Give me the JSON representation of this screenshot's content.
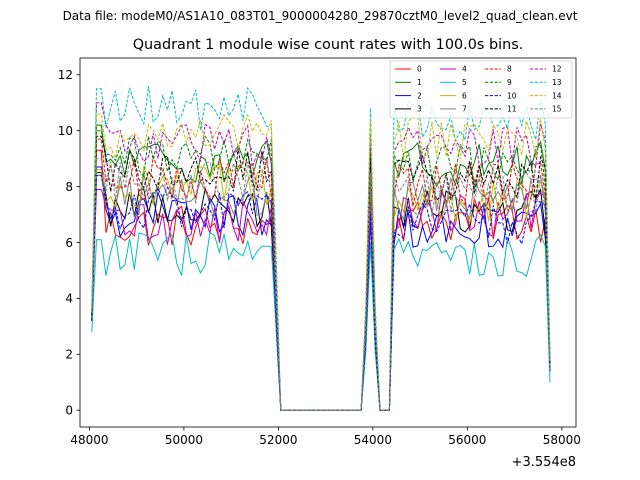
{
  "chart_data": {
    "type": "line",
    "suptitle": "Data file: modeM0/AS1A10_083T01_9000004280_29870cztM0_level2_quad_clean.evt",
    "title": "Quadrant 1 module wise count rates with 100.0s bins.",
    "xlabel": "",
    "ylabel": "",
    "x_offset_label": "+3.554e8",
    "xlim": [
      47800,
      58300
    ],
    "ylim": [
      -0.6,
      12.6
    ],
    "x_ticks": [
      48000,
      50000,
      52000,
      54000,
      56000,
      58000
    ],
    "x_tick_labels": [
      "48000",
      "50000",
      "52000",
      "54000",
      "56000",
      "58000"
    ],
    "y_ticks": [
      0,
      2,
      4,
      6,
      8,
      10,
      12
    ],
    "y_tick_labels": [
      "0",
      "2",
      "4",
      "6",
      "8",
      "10",
      "12"
    ],
    "bin_start": 48050,
    "bin_width": 100,
    "num_bins": 98,
    "segments": [
      {
        "type": "rise",
        "from": 48050,
        "to": 48250
      },
      {
        "type": "on",
        "from": 48250,
        "to": 51850
      },
      {
        "type": "fall",
        "from": 51850,
        "to": 52050
      },
      {
        "type": "off",
        "from": 52050,
        "to": 53750
      },
      {
        "type": "spike",
        "from": 53750,
        "to": 54150,
        "peak": 53950
      },
      {
        "type": "off",
        "from": 54150,
        "to": 54350
      },
      {
        "type": "rise",
        "from": 54350,
        "to": 54550
      },
      {
        "type": "on",
        "from": 54550,
        "to": 57750
      },
      {
        "type": "fall",
        "from": 57750,
        "to": 57850
      }
    ],
    "legend_position": "upper-right",
    "series": [
      {
        "name": "0",
        "color": "#ff0000",
        "style": "solid",
        "level_first": 6.6,
        "level_second": 6.8,
        "peak": 9.3,
        "spike": 7.1,
        "end": 1.6
      },
      {
        "name": "1",
        "color": "#008000",
        "style": "solid",
        "level_first": 8.9,
        "level_second": 8.8,
        "peak": 10.2,
        "spike": 9.2,
        "end": 1.6
      },
      {
        "name": "2",
        "color": "#0000ff",
        "style": "solid",
        "level_first": 7.0,
        "level_second": 6.6,
        "peak": 8.7,
        "spike": 6.9,
        "end": 1.4
      },
      {
        "name": "3",
        "color": "#000000",
        "style": "solid",
        "level_first": 7.3,
        "level_second": 7.1,
        "peak": 8.5,
        "spike": 7.6,
        "end": 1.5
      },
      {
        "name": "4",
        "color": "#bf00bf",
        "style": "solid",
        "level_first": 6.7,
        "level_second": 7.0,
        "peak": 7.9,
        "spike": 7.3,
        "end": 1.4
      },
      {
        "name": "5",
        "color": "#00bfbf",
        "style": "solid",
        "level_first": 5.6,
        "level_second": 5.5,
        "peak": 6.1,
        "spike": 6.0,
        "end": 1.0
      },
      {
        "name": "6",
        "color": "#bfbf00",
        "style": "solid",
        "level_first": 8.0,
        "level_second": 7.4,
        "peak": 8.6,
        "spike": 8.4,
        "end": 1.5
      },
      {
        "name": "7",
        "color": "#808080",
        "style": "solid",
        "level_first": 7.7,
        "level_second": 7.6,
        "peak": 8.4,
        "spike": 8.2,
        "end": 1.5
      },
      {
        "name": "8",
        "color": "#ff0000",
        "style": "dashed",
        "level_first": 8.3,
        "level_second": 8.1,
        "peak": 9.7,
        "spike": 8.9,
        "end": 1.6
      },
      {
        "name": "9",
        "color": "#008000",
        "style": "dashed",
        "level_first": 9.1,
        "level_second": 8.7,
        "peak": 10.0,
        "spike": 9.4,
        "end": 1.7
      },
      {
        "name": "10",
        "color": "#0000ff",
        "style": "dashed",
        "level_first": 7.2,
        "level_second": 6.7,
        "peak": 8.4,
        "spike": 7.0,
        "end": 1.4
      },
      {
        "name": "11",
        "color": "#000000",
        "style": "dashed",
        "level_first": 8.6,
        "level_second": 8.3,
        "peak": 9.8,
        "spike": 9.0,
        "end": 1.6
      },
      {
        "name": "12",
        "color": "#bf00bf",
        "style": "dashed",
        "level_first": 9.5,
        "level_second": 9.5,
        "peak": 11.0,
        "spike": 9.9,
        "end": 1.8
      },
      {
        "name": "13",
        "color": "#00bfbf",
        "style": "dashed",
        "level_first": 10.8,
        "level_second": 10.4,
        "peak": 11.5,
        "spike": 10.8,
        "end": 1.9
      },
      {
        "name": "14",
        "color": "#bfbf00",
        "style": "dashed",
        "level_first": 9.8,
        "level_second": 9.7,
        "peak": 10.6,
        "spike": 10.4,
        "end": 1.8
      },
      {
        "name": "15",
        "color": "#808080",
        "style": "dashed",
        "level_first": 8.1,
        "level_second": 7.7,
        "peak": 9.0,
        "spike": 8.5,
        "end": 1.5
      }
    ]
  }
}
